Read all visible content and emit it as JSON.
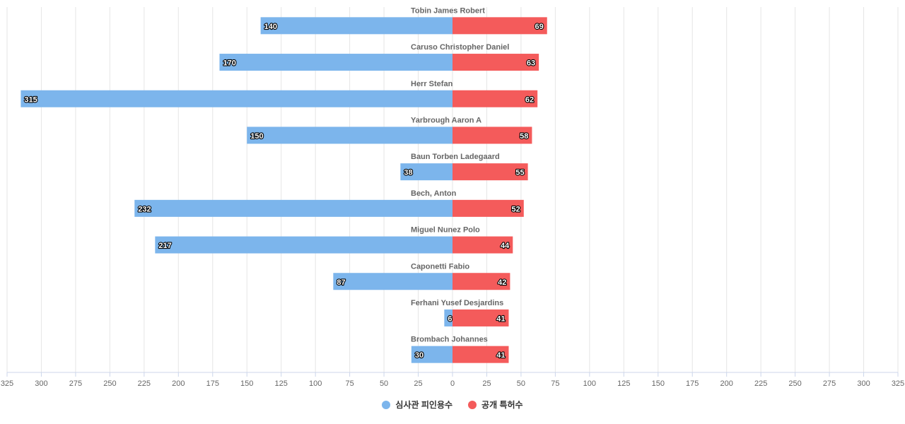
{
  "chart_data": {
    "type": "bar",
    "orientation": "horizontal-diverging",
    "categories": [
      "Tobin James Robert",
      "Caruso Christopher Daniel",
      "Herr Stefan",
      "Yarbrough Aaron A",
      "Baun Torben Ladegaard",
      "Bech, Anton",
      "Miguel Nunez Polo",
      "Caponetti Fabio",
      "Ferhani Yusef Desjardins",
      "Brombach Johannes"
    ],
    "series": [
      {
        "name": "심사관 피인용수",
        "side": "left",
        "color": "#7cb5ec",
        "values": [
          140,
          170,
          315,
          150,
          38,
          232,
          217,
          87,
          6,
          30
        ]
      },
      {
        "name": "공개 특허수",
        "side": "right",
        "color": "#f45b5b",
        "values": [
          69,
          63,
          62,
          58,
          55,
          52,
          44,
          42,
          41,
          41
        ]
      }
    ],
    "xlim": [
      -325,
      325
    ],
    "tick_step": 25,
    "tick_labels": [
      "325",
      "300",
      "275",
      "250",
      "225",
      "200",
      "175",
      "150",
      "125",
      "100",
      "75",
      "50",
      "25",
      "0",
      "25",
      "50",
      "75",
      "100",
      "125",
      "150",
      "175",
      "200",
      "225",
      "250",
      "275",
      "300",
      "325"
    ],
    "grid": true,
    "legend_placement": "bottom-center",
    "data_labels": true
  }
}
